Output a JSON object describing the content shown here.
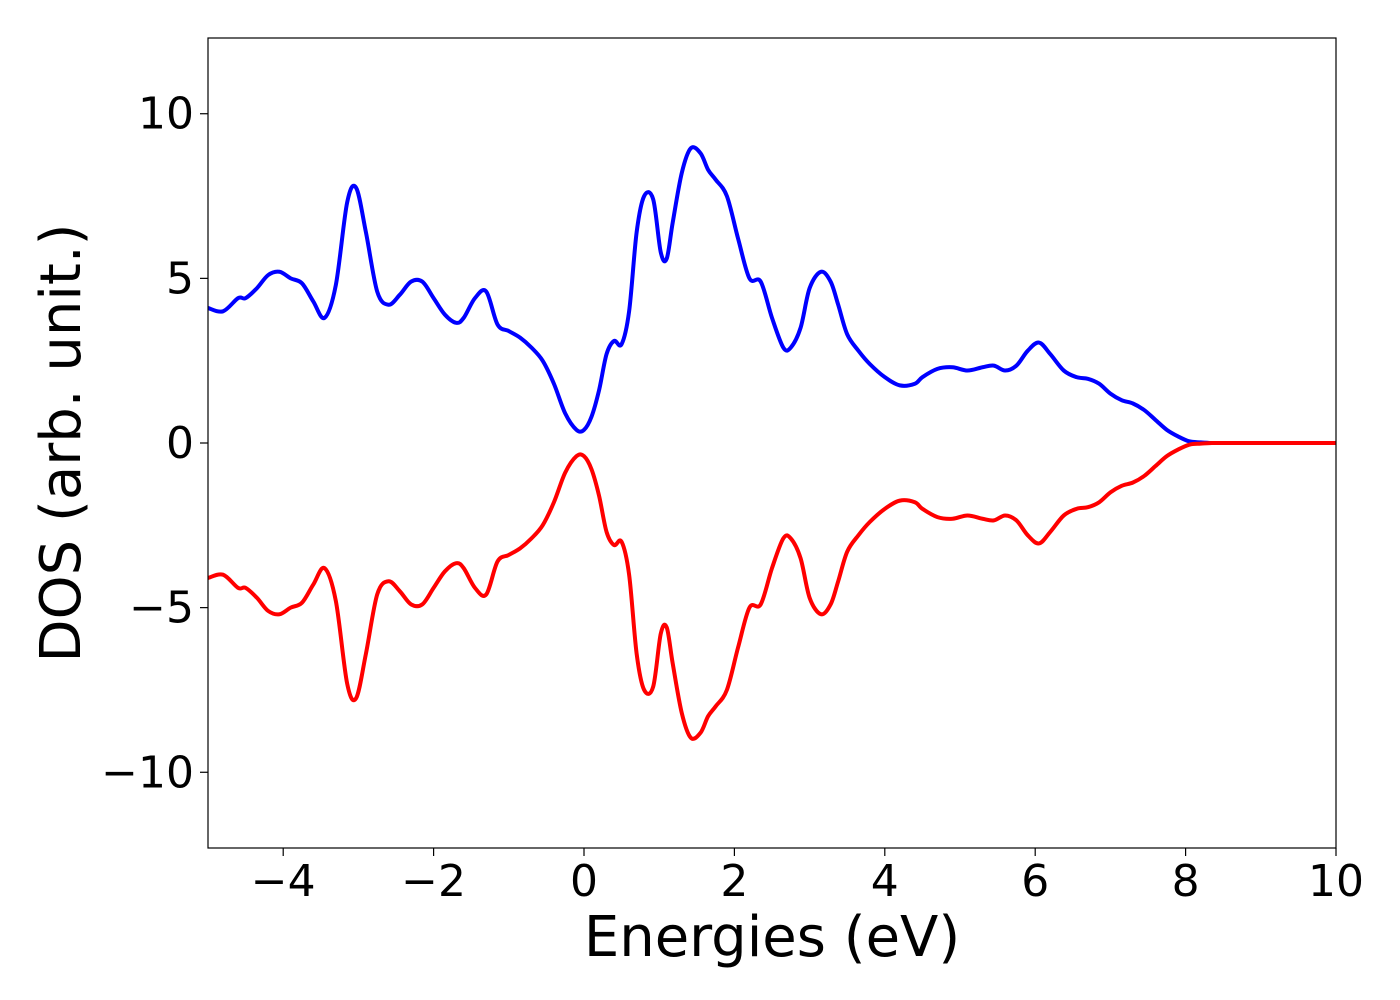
{
  "chart_data": {
    "type": "line",
    "title": "",
    "xlabel": "Energies (eV)",
    "ylabel": "DOS (arb. unit.)",
    "xlim": [
      -5,
      10
    ],
    "ylim": [
      -12.3,
      12.3
    ],
    "xticks": [
      -4,
      -2,
      0,
      2,
      4,
      6,
      8,
      10
    ],
    "xtick_labels": [
      "−4",
      "−2",
      "0",
      "2",
      "4",
      "6",
      "8",
      "10"
    ],
    "yticks": [
      -10,
      -5,
      0,
      5,
      10
    ],
    "ytick_labels": [
      "−10",
      "−5",
      "0",
      "5",
      "10"
    ],
    "grid": false,
    "legend": "none",
    "series": [
      {
        "color": "#0000ff",
        "x": [
          -5.0,
          -4.8,
          -4.6,
          -4.5,
          -4.35,
          -4.2,
          -4.05,
          -3.9,
          -3.75,
          -3.6,
          -3.45,
          -3.3,
          -3.15,
          -3.03,
          -2.9,
          -2.75,
          -2.6,
          -2.45,
          -2.3,
          -2.15,
          -2.0,
          -1.85,
          -1.7,
          -1.6,
          -1.45,
          -1.3,
          -1.15,
          -1.0,
          -0.85,
          -0.7,
          -0.55,
          -0.4,
          -0.25,
          -0.1,
          0.0,
          0.1,
          0.2,
          0.3,
          0.4,
          0.5,
          0.6,
          0.7,
          0.8,
          0.92,
          1.02,
          1.1,
          1.18,
          1.3,
          1.42,
          1.55,
          1.65,
          1.75,
          1.9,
          2.05,
          2.2,
          2.35,
          2.5,
          2.65,
          2.75,
          2.88,
          3.0,
          3.15,
          3.28,
          3.38,
          3.5,
          3.65,
          3.8,
          4.0,
          4.2,
          4.4,
          4.5,
          4.7,
          4.9,
          5.1,
          5.3,
          5.45,
          5.6,
          5.75,
          5.9,
          6.05,
          6.2,
          6.38,
          6.55,
          6.7,
          6.85,
          7.0,
          7.15,
          7.3,
          7.45,
          7.6,
          7.75,
          7.9,
          8.05,
          8.2,
          8.35,
          8.5,
          8.7,
          9.0,
          9.5,
          10.0
        ],
        "y": [
          4.1,
          4.0,
          4.4,
          4.4,
          4.7,
          5.1,
          5.2,
          5.0,
          4.85,
          4.3,
          3.8,
          4.8,
          7.3,
          7.75,
          6.4,
          4.6,
          4.2,
          4.5,
          4.9,
          4.9,
          4.4,
          3.9,
          3.65,
          3.8,
          4.4,
          4.6,
          3.6,
          3.4,
          3.2,
          2.9,
          2.5,
          1.8,
          0.9,
          0.4,
          0.4,
          0.8,
          1.6,
          2.7,
          3.1,
          3.0,
          4.0,
          6.4,
          7.5,
          7.4,
          5.8,
          5.6,
          6.7,
          8.2,
          8.95,
          8.8,
          8.3,
          8.0,
          7.5,
          6.2,
          5.0,
          4.9,
          3.8,
          2.9,
          2.9,
          3.5,
          4.7,
          5.2,
          4.9,
          4.2,
          3.3,
          2.8,
          2.4,
          2.0,
          1.75,
          1.8,
          2.0,
          2.25,
          2.3,
          2.2,
          2.3,
          2.35,
          2.2,
          2.35,
          2.8,
          3.05,
          2.7,
          2.2,
          2.0,
          1.95,
          1.8,
          1.5,
          1.3,
          1.2,
          1.0,
          0.7,
          0.4,
          0.2,
          0.05,
          0.02,
          0.0,
          0.0,
          0.0,
          0.0,
          0.0,
          0.0
        ]
      },
      {
        "color": "#ff0000",
        "x": [
          -5.0,
          -4.8,
          -4.6,
          -4.5,
          -4.35,
          -4.2,
          -4.05,
          -3.9,
          -3.75,
          -3.6,
          -3.45,
          -3.3,
          -3.15,
          -3.03,
          -2.9,
          -2.75,
          -2.6,
          -2.45,
          -2.3,
          -2.15,
          -2.0,
          -1.85,
          -1.7,
          -1.6,
          -1.45,
          -1.3,
          -1.15,
          -1.0,
          -0.85,
          -0.7,
          -0.55,
          -0.4,
          -0.25,
          -0.1,
          0.0,
          0.1,
          0.2,
          0.3,
          0.4,
          0.5,
          0.6,
          0.7,
          0.8,
          0.92,
          1.02,
          1.1,
          1.18,
          1.3,
          1.42,
          1.55,
          1.65,
          1.75,
          1.9,
          2.05,
          2.2,
          2.35,
          2.5,
          2.65,
          2.75,
          2.88,
          3.0,
          3.15,
          3.28,
          3.38,
          3.5,
          3.65,
          3.8,
          4.0,
          4.2,
          4.4,
          4.5,
          4.7,
          4.9,
          5.1,
          5.3,
          5.45,
          5.6,
          5.75,
          5.9,
          6.05,
          6.2,
          6.38,
          6.55,
          6.7,
          6.85,
          7.0,
          7.15,
          7.3,
          7.45,
          7.6,
          7.75,
          7.9,
          8.05,
          8.2,
          8.35,
          8.5,
          8.7,
          9.0,
          9.5,
          10.0
        ],
        "y": [
          -4.1,
          -4.0,
          -4.4,
          -4.4,
          -4.7,
          -5.1,
          -5.2,
          -5.0,
          -4.85,
          -4.3,
          -3.8,
          -4.8,
          -7.3,
          -7.75,
          -6.4,
          -4.6,
          -4.2,
          -4.5,
          -4.9,
          -4.9,
          -4.4,
          -3.9,
          -3.65,
          -3.8,
          -4.4,
          -4.6,
          -3.6,
          -3.4,
          -3.2,
          -2.9,
          -2.5,
          -1.8,
          -0.9,
          -0.4,
          -0.4,
          -0.8,
          -1.6,
          -2.7,
          -3.1,
          -3.0,
          -4.0,
          -6.4,
          -7.5,
          -7.4,
          -5.8,
          -5.6,
          -6.7,
          -8.2,
          -8.95,
          -8.8,
          -8.3,
          -8.0,
          -7.5,
          -6.2,
          -5.0,
          -4.9,
          -3.8,
          -2.9,
          -2.9,
          -3.5,
          -4.7,
          -5.2,
          -4.9,
          -4.2,
          -3.3,
          -2.8,
          -2.4,
          -2.0,
          -1.75,
          -1.8,
          -2.0,
          -2.25,
          -2.3,
          -2.2,
          -2.3,
          -2.35,
          -2.2,
          -2.35,
          -2.8,
          -3.05,
          -2.7,
          -2.2,
          -2.0,
          -1.95,
          -1.8,
          -1.5,
          -1.3,
          -1.2,
          -1.0,
          -0.7,
          -0.4,
          -0.2,
          -0.05,
          -0.02,
          0.0,
          0.0,
          0.0,
          0.0,
          0.0,
          0.0
        ]
      }
    ]
  }
}
